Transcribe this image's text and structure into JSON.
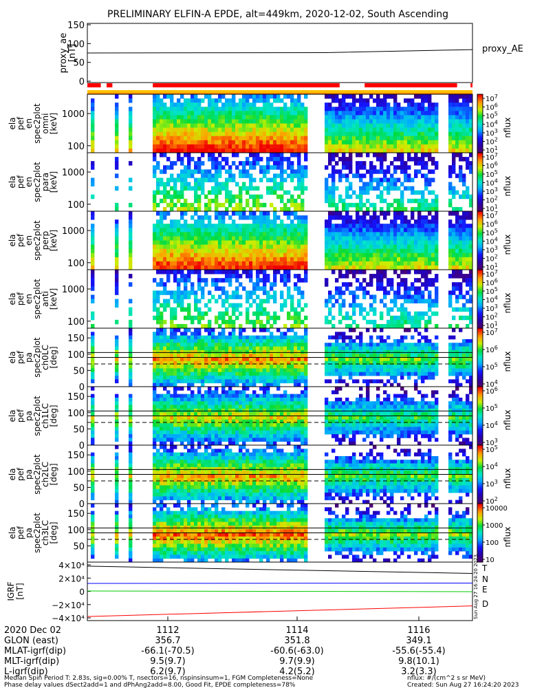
{
  "title": "PRELIMINARY ELFIN-A EPDE, alt=449km, 2020-12-02, South Ascending",
  "colors": {
    "proxy_ae": "#000000",
    "igrf_T": "#000000",
    "igrf_N": "#0000ff",
    "igrf_E": "#00cc00",
    "igrf_D": "#ff0000",
    "bar_red": "#ff0000",
    "bar_yellow": "#ffbf00",
    "bar_orange": "#ff8c00"
  },
  "bottom_info": {
    "rows": [
      {
        "label": "2020 Dec 02",
        "v1": "1112",
        "v2": "1114",
        "v3": "1116"
      },
      {
        "label": "GLON (east)",
        "v1": "356.7",
        "v2": "351.8",
        "v3": "349.1"
      },
      {
        "label": "MLAT-igrf(dip)",
        "v1": "-66.1(-70.5)",
        "v2": "-60.6(-63.0)",
        "v3": "-55.6(-55.4)"
      },
      {
        "label": "MLT-igrf(dip)",
        "v1": "9.5(9.7)",
        "v2": "9.7(9.9)",
        "v3": "9.8(10.1)"
      },
      {
        "label": "L-igrf(dip)",
        "v1": "6.2(9.7)",
        "v2": "4.2(5.2)",
        "v3": "3.2(3.3)"
      }
    ],
    "footer_left_1": "Median Spin Period T: 2.83s, sig=0.00% T, nsectors=16, nspinsinsum=1, FGM Completeness=None",
    "footer_left_2": "Phase delay values dSect2add=1 and dPhAng2add=8.00, Good Fit, EPDE completeness=78%",
    "footer_right_1": "nflux: #/(cm^2 s sr MeV)",
    "footer_right_2": "Created: Sun Aug 27 16:24:20 2023",
    "vertical_stamp": "Sun Aug 27 16:24:20 2023"
  },
  "chart_data": [
    {
      "type": "line",
      "panel": "proxy_ae",
      "ylabel": [
        "proxy_ae",
        "[nT]"
      ],
      "ylim": [
        0,
        150
      ],
      "yticks": [
        "150",
        "100",
        "50",
        "0"
      ],
      "series": [
        {
          "name": "proxy_AE",
          "x": [
            0,
            0.62,
            1
          ],
          "values": [
            75,
            76,
            84
          ]
        }
      ]
    },
    {
      "type": "bar",
      "panel": "coverage",
      "description_colors": [
        "red",
        "yellow"
      ],
      "segments": [
        [
          0,
          0.035
        ],
        [
          0.05,
          0.065
        ],
        [
          0.17,
          0.655
        ],
        [
          0.72,
          0.96
        ],
        [
          0.995,
          1.0
        ]
      ]
    },
    {
      "type": "heatmap",
      "panel": "omni",
      "ylabel": [
        "ela",
        "pef",
        "en",
        "spec2plot",
        "omni",
        "[keV]"
      ],
      "yticks": [
        "1000",
        "100"
      ],
      "colorbar": {
        "label": "nflux",
        "ticks": [
          "10^7",
          "10^6",
          "10^5",
          "10^4",
          "10^3",
          "10^2",
          "10^1"
        ]
      }
    },
    {
      "type": "heatmap",
      "panel": "para",
      "ylabel": [
        "ela",
        "pef",
        "en",
        "spec2plot",
        "para",
        "[keV]"
      ],
      "yticks": [
        "1000",
        "100"
      ],
      "colorbar": {
        "label": "nflux",
        "ticks": [
          "10^7",
          "10^6",
          "10^5",
          "10^4",
          "10^3",
          "10^2",
          "10^1"
        ]
      }
    },
    {
      "type": "heatmap",
      "panel": "perp",
      "ylabel": [
        "ela",
        "pef",
        "en",
        "spec2plot",
        "perp",
        "[keV]"
      ],
      "yticks": [
        "1000",
        "100"
      ],
      "colorbar": {
        "label": "nflux",
        "ticks": [
          "10^7",
          "10^6",
          "10^5",
          "10^4",
          "10^3",
          "10^2",
          "10^1"
        ]
      }
    },
    {
      "type": "heatmap",
      "panel": "anti",
      "ylabel": [
        "ela",
        "pef",
        "en",
        "spec2plot",
        "anti",
        "[keV]"
      ],
      "yticks": [
        "1000",
        "100"
      ],
      "colorbar": {
        "label": "nflux",
        "ticks": [
          "10^7",
          "10^6",
          "10^5",
          "10^4",
          "10^3",
          "10^2",
          "10^1"
        ]
      }
    },
    {
      "type": "heatmap",
      "panel": "ch0LC",
      "ylabel": [
        "ela",
        "pef",
        "pa",
        "spec2plot",
        "ch0LC",
        "[deg]"
      ],
      "yticks": [
        "150",
        "100",
        "50",
        "0"
      ],
      "ylim": [
        0,
        180
      ],
      "colorbar": {
        "label": "nflux",
        "ticks": [
          "10^7",
          "10^6",
          "10^5",
          "10^4"
        ]
      }
    },
    {
      "type": "heatmap",
      "panel": "ch1LC",
      "ylabel": [
        "ela",
        "pef",
        "pa",
        "spec2plot",
        "ch1LC",
        "[deg]"
      ],
      "yticks": [
        "150",
        "100",
        "50",
        "0"
      ],
      "ylim": [
        0,
        180
      ],
      "colorbar": {
        "label": "nflux",
        "ticks": [
          "10^6",
          "10^5",
          "10^4",
          "10^3"
        ]
      }
    },
    {
      "type": "heatmap",
      "panel": "ch2LC",
      "ylabel": [
        "ela",
        "pef",
        "pa",
        "spec2plot",
        "ch2LC",
        "[deg]"
      ],
      "yticks": [
        "150",
        "100",
        "50",
        "0"
      ],
      "ylim": [
        0,
        180
      ],
      "colorbar": {
        "label": "nflux",
        "ticks": [
          "10^5",
          "10^4",
          "10^3",
          "10^2"
        ]
      }
    },
    {
      "type": "heatmap",
      "panel": "ch3LC",
      "ylabel": [
        "ela",
        "pef",
        "pa",
        "spec2plot",
        "ch3LC",
        "[deg]"
      ],
      "yticks": [
        "150",
        "100",
        "50"
      ],
      "ylim": [
        0,
        180
      ],
      "colorbar": {
        "label": "nflux",
        "ticks": [
          "10000",
          "1000",
          "100",
          "10"
        ]
      }
    },
    {
      "type": "line",
      "panel": "igrf",
      "ylabel": [
        "IGRF",
        "[nT]"
      ],
      "ylim": [
        -40000,
        40000
      ],
      "yticks": [
        "4×10⁴",
        "2×10⁴",
        "0",
        "−2×10⁴",
        "−4×10⁴"
      ],
      "series": [
        {
          "name": "T",
          "x": [
            0,
            1
          ],
          "values": [
            38000,
            27000
          ]
        },
        {
          "name": "N",
          "x": [
            0,
            1
          ],
          "values": [
            12000,
            12500
          ]
        },
        {
          "name": "E",
          "x": [
            0,
            1
          ],
          "values": [
            500,
            -500
          ]
        },
        {
          "name": "D",
          "x": [
            0,
            1
          ],
          "values": [
            -38000,
            -22000
          ]
        }
      ]
    }
  ]
}
